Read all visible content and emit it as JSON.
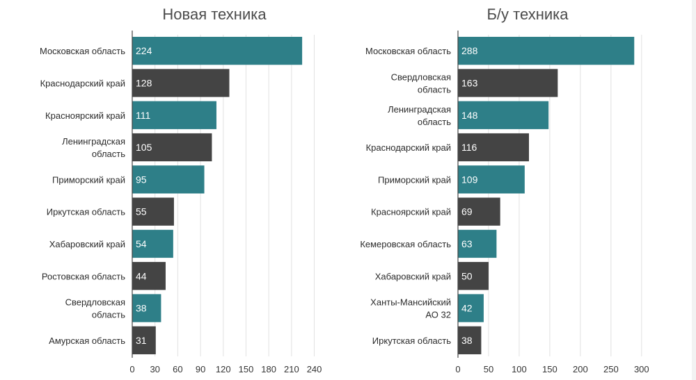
{
  "chart_data": [
    {
      "type": "bar",
      "orientation": "horizontal",
      "title": "Новая техника",
      "categories": [
        "Московская область",
        "Краснодарский край",
        "Красноярский край",
        "Ленинградская область",
        "Приморский край",
        "Иркутская область",
        "Хабаровский край",
        "Ростовская область",
        "Свердловская область",
        "Амурская область"
      ],
      "values": [
        224,
        128,
        111,
        105,
        95,
        55,
        54,
        44,
        38,
        31
      ],
      "value_labels": [
        "224",
        "128",
        "111",
        "105",
        "95",
        "55",
        "54",
        "44",
        "38",
        "31"
      ],
      "bar_colors": [
        "#2e7f88",
        "#444444",
        "#2e7f88",
        "#444444",
        "#2e7f88",
        "#444444",
        "#2e7f88",
        "#444444",
        "#2e7f88",
        "#444444"
      ],
      "xlim": [
        0,
        245
      ],
      "x_ticks": [
        0,
        30,
        60,
        90,
        120,
        150,
        180,
        210,
        240
      ],
      "x_tick_labels": [
        "0",
        "30",
        "60",
        "90",
        "120",
        "150",
        "180",
        "210",
        "240"
      ],
      "grid": true,
      "legend": "none"
    },
    {
      "type": "bar",
      "orientation": "horizontal",
      "title": "Б/у техника",
      "categories": [
        "Московская область",
        "Свердловская область",
        "Ленинградская область",
        "Краснодарский край",
        "Приморский край",
        "Красноярский край",
        "Кемеровская область",
        "Хабаровский край",
        "Ханты-Мансийский АО 32",
        "Иркутская область"
      ],
      "values": [
        288,
        163,
        148,
        116,
        109,
        69,
        63,
        50,
        42,
        38
      ],
      "value_labels": [
        "288",
        "163",
        "148",
        "116",
        "109",
        "69",
        "63",
        "50",
        "42",
        "38"
      ],
      "bar_colors": [
        "#2e7f88",
        "#444444",
        "#2e7f88",
        "#444444",
        "#2e7f88",
        "#444444",
        "#2e7f88",
        "#444444",
        "#2e7f88",
        "#444444"
      ],
      "xlim": [
        0,
        315
      ],
      "x_ticks": [
        0,
        50,
        100,
        150,
        200,
        250,
        300
      ],
      "x_tick_labels": [
        "0",
        "50",
        "100",
        "150",
        "200",
        "250",
        "300"
      ],
      "grid": true,
      "legend": "none"
    }
  ],
  "colors": {
    "accent_teal": "#2e7f88",
    "dark_gray": "#444444",
    "grid": "#e1e1e1",
    "text": "#2b2b2b"
  }
}
